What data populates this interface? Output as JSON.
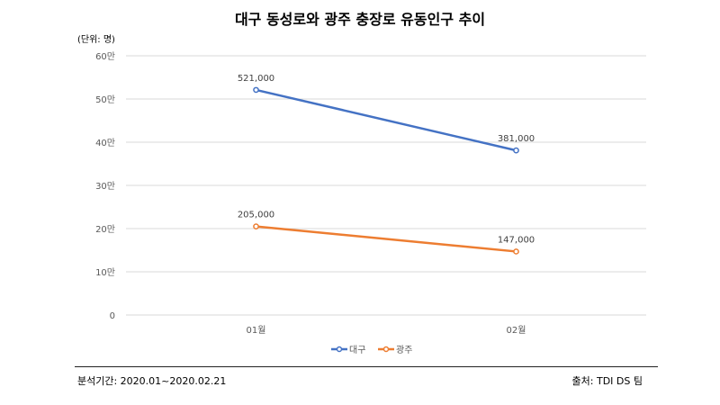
{
  "chart_data": {
    "type": "line",
    "title": "대구 동성로와 광주 충장로 유동인구 추이",
    "unit_label": "(단위: 명)",
    "categories": [
      "01월",
      "02월"
    ],
    "series": [
      {
        "name": "대구",
        "values": [
          521000,
          381000
        ],
        "labels": [
          "521,000",
          "381,000"
        ],
        "color": "#4472C4"
      },
      {
        "name": "광주",
        "values": [
          205000,
          147000
        ],
        "labels": [
          "205,000",
          "147,000"
        ],
        "color": "#ED7D31"
      }
    ],
    "ylim": [
      0,
      600000
    ],
    "yticks": [
      0,
      100000,
      200000,
      300000,
      400000,
      500000,
      600000
    ],
    "ytick_labels": [
      "0",
      "10만",
      "20만",
      "30만",
      "40만",
      "50만",
      "60만"
    ],
    "grid": true,
    "legend_position": "bottom"
  },
  "footer": {
    "period": "분석기간: 2020.01~2020.02.21",
    "source": "출처: TDI DS 팀"
  }
}
